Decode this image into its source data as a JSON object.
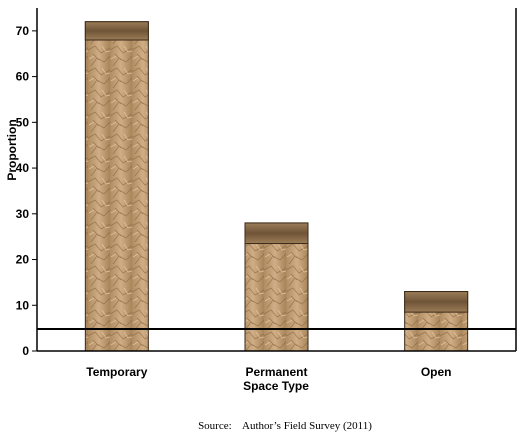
{
  "chart_data": {
    "type": "bar",
    "categories": [
      "Temporary",
      "Permanent",
      "Open"
    ],
    "values": [
      72,
      28,
      13
    ],
    "inner_band_top": [
      68,
      23.5,
      8.5
    ],
    "xlabel": "Space Type",
    "ylabel": "Proportion",
    "ylim": [
      0,
      75
    ],
    "yticks": [
      0,
      10,
      20,
      30,
      40,
      50,
      60,
      70
    ],
    "reference_line": 4.8,
    "grid": false,
    "legend": "none",
    "colors": {
      "bar_light": "#c9a77e",
      "bar_mid": "#a9855b",
      "bar_dark": "#7a5b3a",
      "cap": "#8a6d4c",
      "line": "#000000"
    }
  },
  "source_note": "Source:    Author’s Field Survey (2011)"
}
